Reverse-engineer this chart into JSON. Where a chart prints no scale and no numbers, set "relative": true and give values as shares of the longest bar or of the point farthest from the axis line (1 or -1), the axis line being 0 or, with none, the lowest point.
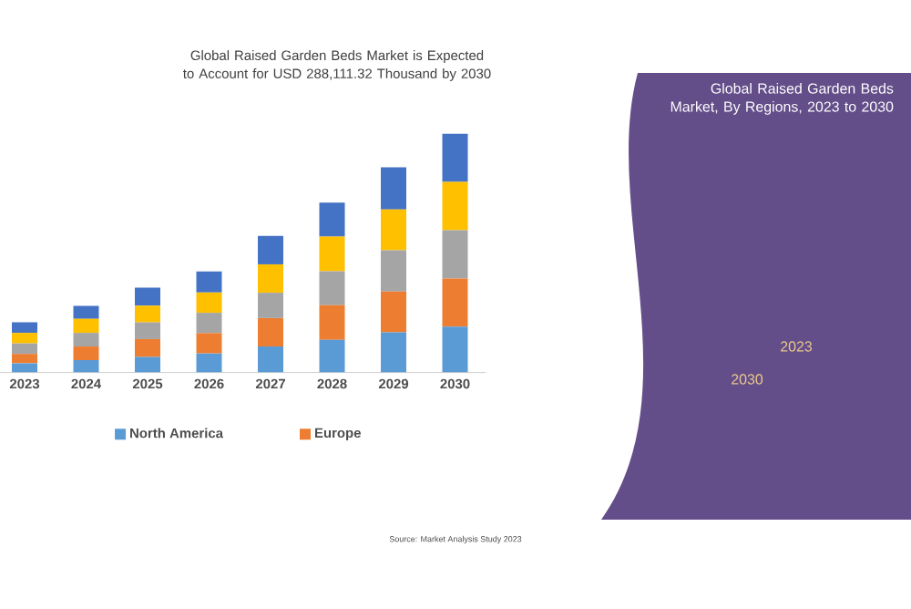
{
  "chart_data": {
    "type": "bar",
    "stacked": true,
    "relative": true,
    "title": "Global Raised Garden Beds Market is Expected to Account for USD 288,111.32 Thousand by 2030",
    "subtitle": "Global Raised Garden Beds Market, By Regions, 2023 to 2030",
    "categories": [
      "2023",
      "2024",
      "2025",
      "2026",
      "2027",
      "2028",
      "2029",
      "2030"
    ],
    "series": [
      {
        "name": "North America",
        "color": "#5b9bd5",
        "values": [
          0.039,
          0.052,
          0.065,
          0.08,
          0.109,
          0.137,
          0.168,
          0.192
        ]
      },
      {
        "name": "Europe",
        "color": "#ed7d31",
        "values": [
          0.039,
          0.057,
          0.075,
          0.085,
          0.119,
          0.145,
          0.171,
          0.202
        ]
      },
      {
        "color": "#a5a5a5",
        "values": [
          0.044,
          0.057,
          0.07,
          0.085,
          0.106,
          0.142,
          0.173,
          0.202
        ]
      },
      {
        "color": "#ffc000",
        "values": [
          0.044,
          0.059,
          0.07,
          0.085,
          0.119,
          0.145,
          0.171,
          0.202
        ]
      },
      {
        "color": "#4472c4",
        "values": [
          0.044,
          0.054,
          0.075,
          0.088,
          0.119,
          0.142,
          0.176,
          0.202
        ]
      }
    ],
    "legend": "bottom",
    "annotations": [
      "2023",
      "2030",
      "Source: Market Analysis Study 2023"
    ]
  }
}
